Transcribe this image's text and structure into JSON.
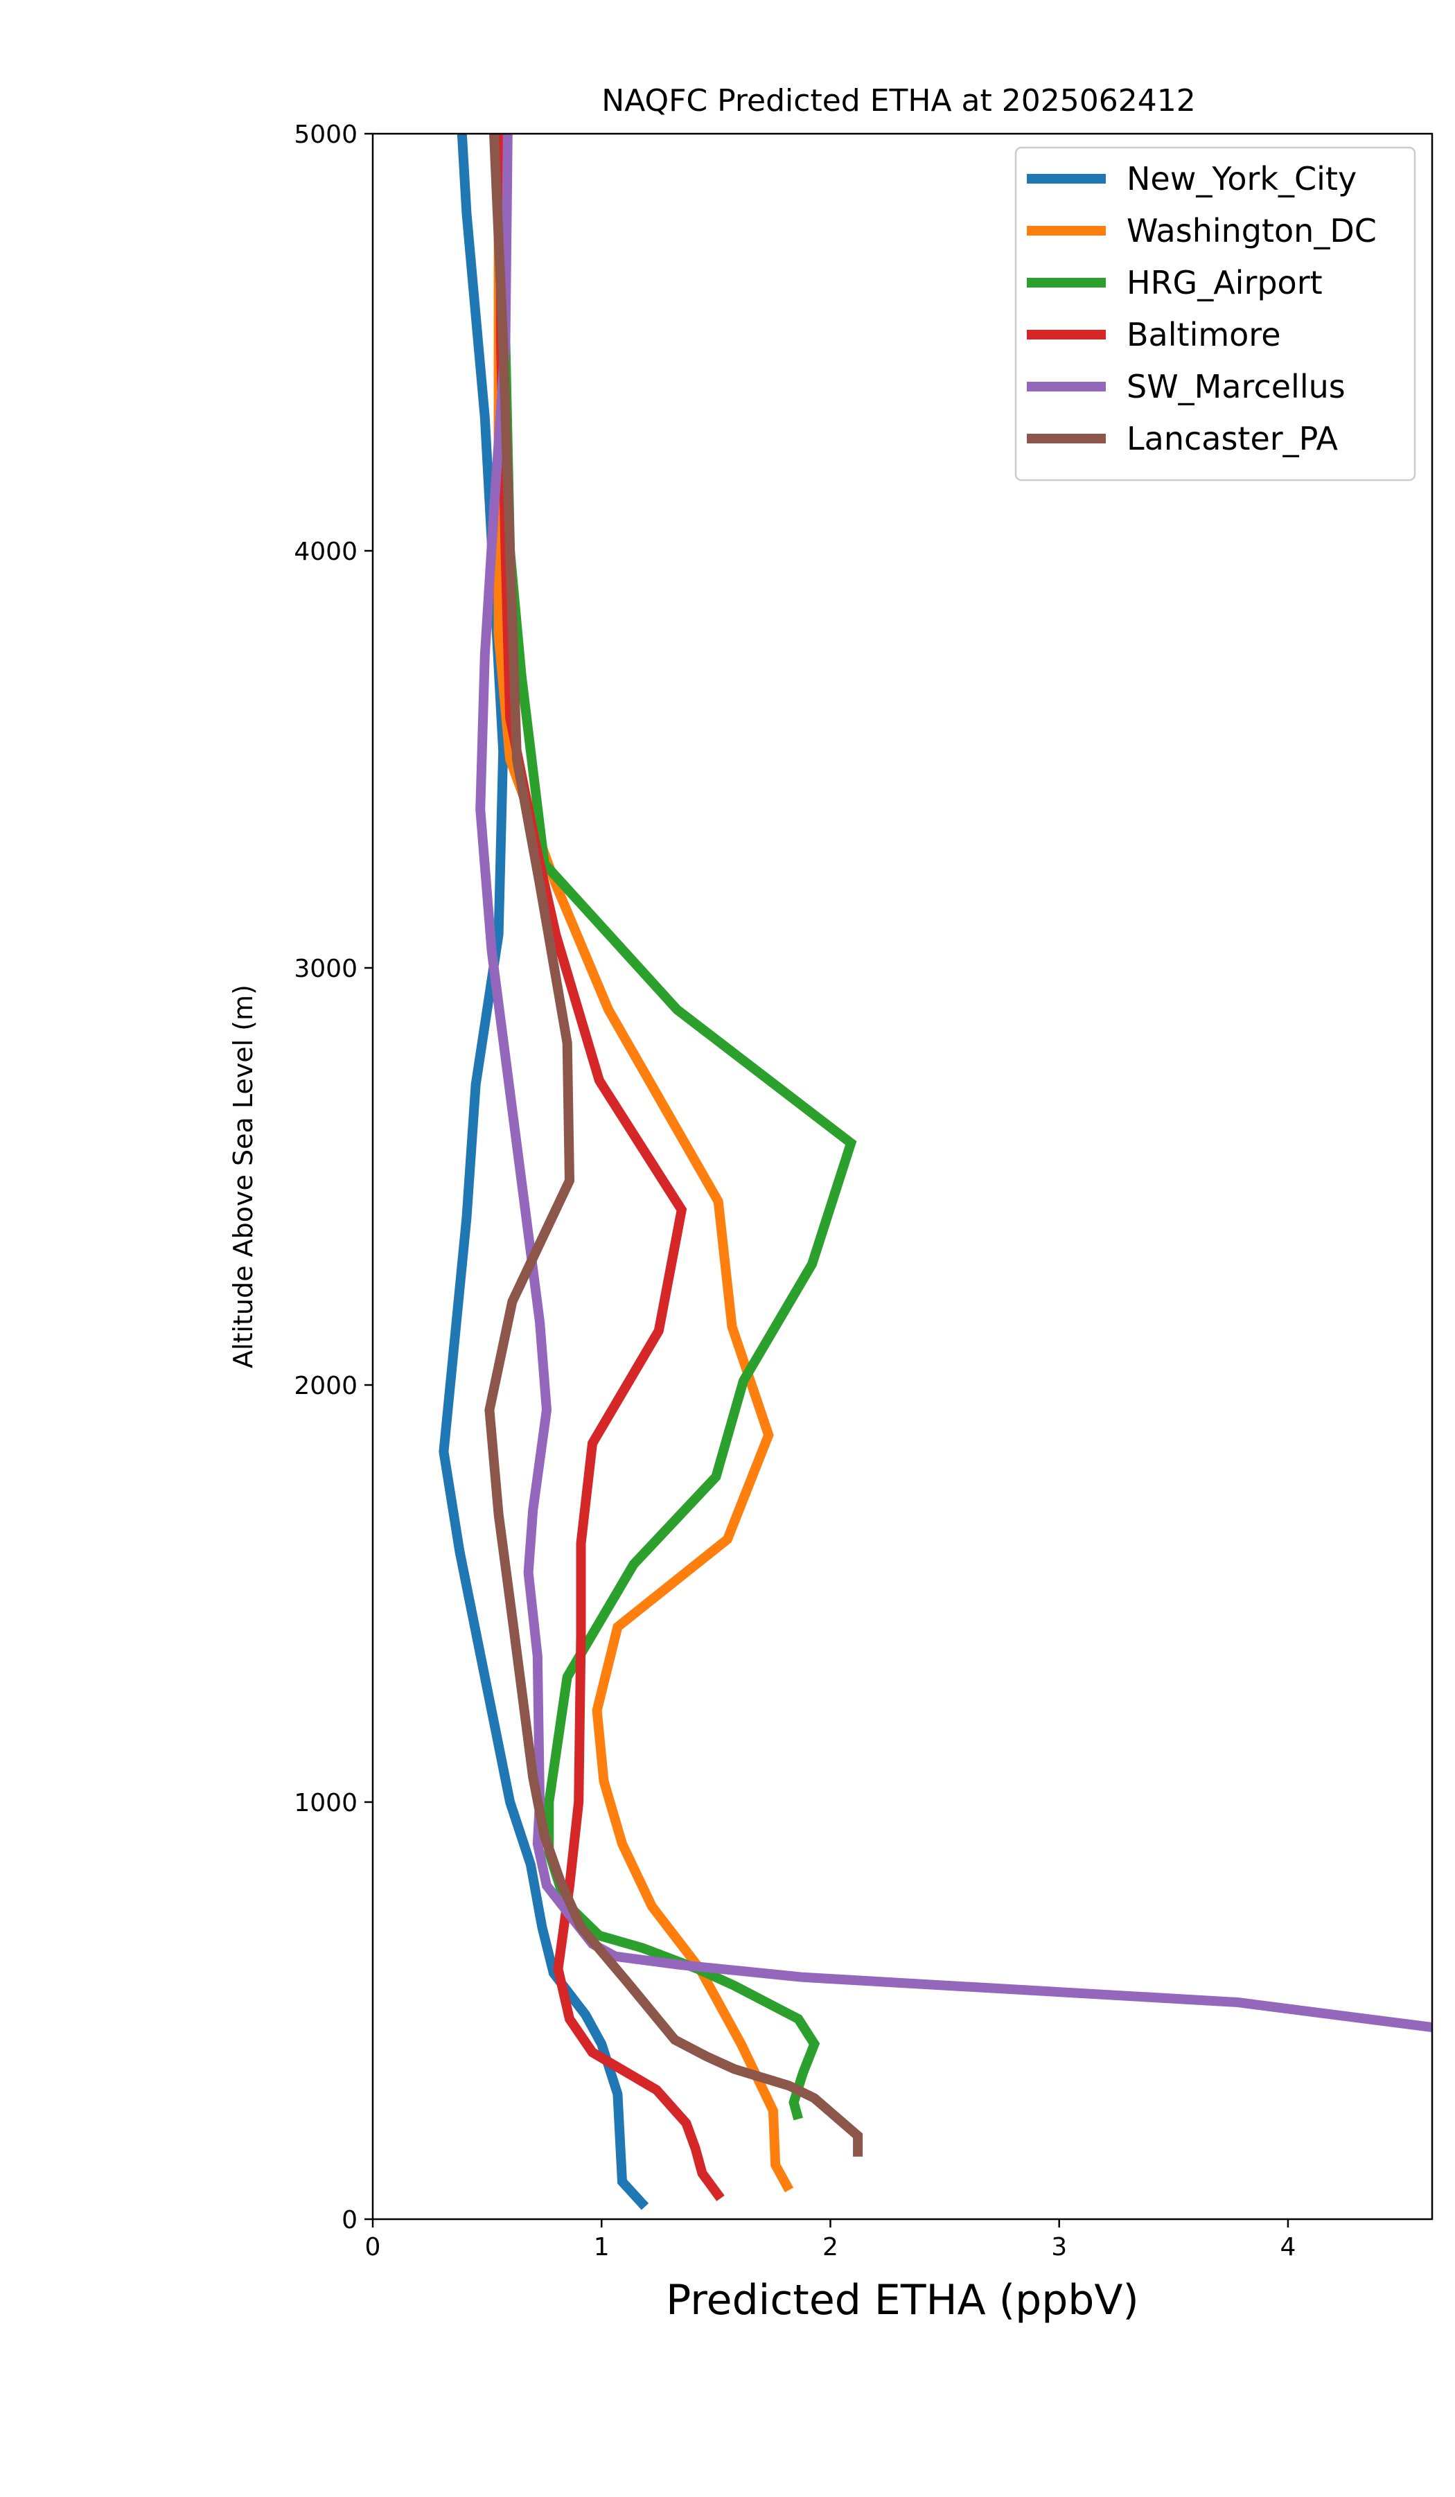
{
  "chart_data": {
    "type": "line",
    "title": "NAQFC Predicted ETHA at 2025062412",
    "xlabel": "Predicted ETHA (ppbV)",
    "ylabel": "Altitude Above Sea Level (m)",
    "xlim": [
      0,
      4.63
    ],
    "ylim": [
      0,
      5000
    ],
    "xticks": [
      0,
      1,
      2,
      3,
      4
    ],
    "xtick_labels": [
      "0",
      "1",
      "2",
      "3",
      "4"
    ],
    "yticks": [
      0,
      1000,
      2000,
      3000,
      4000,
      5000
    ],
    "ytick_labels": [
      "0",
      "1000",
      "2000",
      "3000",
      "4000",
      "5000"
    ],
    "grid": false,
    "legend_position": "top-right",
    "series": [
      {
        "name": "New_York_City",
        "color": "#1f77b4",
        "points": [
          [
            1.19,
            30
          ],
          [
            1.09,
            90
          ],
          [
            1.07,
            300
          ],
          [
            1.0,
            420
          ],
          [
            0.93,
            490
          ],
          [
            0.79,
            590
          ],
          [
            0.74,
            700
          ],
          [
            0.69,
            850
          ],
          [
            0.6,
            1000
          ],
          [
            0.38,
            1600
          ],
          [
            0.31,
            1840
          ],
          [
            0.41,
            2400
          ],
          [
            0.45,
            2720
          ],
          [
            0.55,
            3080
          ],
          [
            0.57,
            3520
          ],
          [
            0.49,
            4320
          ],
          [
            0.41,
            4810
          ],
          [
            0.39,
            5000
          ]
        ]
      },
      {
        "name": "Washington_DC",
        "color": "#ff7f0e",
        "points": [
          [
            1.82,
            70
          ],
          [
            1.76,
            130
          ],
          [
            1.75,
            260
          ],
          [
            1.61,
            420
          ],
          [
            1.43,
            600
          ],
          [
            1.22,
            750
          ],
          [
            1.09,
            900
          ],
          [
            1.01,
            1050
          ],
          [
            0.98,
            1220
          ],
          [
            1.07,
            1420
          ],
          [
            1.55,
            1630
          ],
          [
            1.73,
            1880
          ],
          [
            1.57,
            2140
          ],
          [
            1.51,
            2440
          ],
          [
            1.03,
            2900
          ],
          [
            0.8,
            3200
          ],
          [
            0.6,
            3500
          ],
          [
            0.55,
            3800
          ],
          [
            0.55,
            4400
          ],
          [
            0.55,
            5000
          ]
        ]
      },
      {
        "name": "HRG_Airport",
        "color": "#2ca02c",
        "points": [
          [
            1.86,
            240
          ],
          [
            1.84,
            280
          ],
          [
            1.88,
            350
          ],
          [
            1.93,
            420
          ],
          [
            1.86,
            480
          ],
          [
            1.58,
            560
          ],
          [
            1.42,
            600
          ],
          [
            1.18,
            650
          ],
          [
            0.99,
            680
          ],
          [
            0.84,
            760
          ],
          [
            0.77,
            880
          ],
          [
            0.77,
            1000
          ],
          [
            0.85,
            1300
          ],
          [
            1.14,
            1570
          ],
          [
            1.5,
            1780
          ],
          [
            1.62,
            2010
          ],
          [
            1.92,
            2290
          ],
          [
            2.09,
            2580
          ],
          [
            1.33,
            2900
          ],
          [
            0.75,
            3250
          ],
          [
            0.65,
            3700
          ],
          [
            0.6,
            4000
          ],
          [
            0.58,
            4500
          ],
          [
            0.57,
            5000
          ]
        ]
      },
      {
        "name": "Baltimore",
        "color": "#d62728",
        "points": [
          [
            1.52,
            50
          ],
          [
            1.44,
            110
          ],
          [
            1.41,
            170
          ],
          [
            1.37,
            230
          ],
          [
            1.24,
            310
          ],
          [
            0.96,
            400
          ],
          [
            0.86,
            480
          ],
          [
            0.81,
            600
          ],
          [
            0.86,
            800
          ],
          [
            0.9,
            1000
          ],
          [
            0.91,
            1400
          ],
          [
            0.91,
            1620
          ],
          [
            0.96,
            1860
          ],
          [
            1.25,
            2130
          ],
          [
            1.35,
            2420
          ],
          [
            0.99,
            2730
          ],
          [
            0.8,
            3080
          ],
          [
            0.71,
            3300
          ],
          [
            0.6,
            3600
          ],
          [
            0.58,
            4000
          ],
          [
            0.56,
            4500
          ],
          [
            0.56,
            5000
          ]
        ]
      },
      {
        "name": "SW_Marcellus",
        "color": "#9467bd",
        "points": [
          [
            4.63,
            460
          ],
          [
            3.78,
            520
          ],
          [
            1.88,
            580
          ],
          [
            1.34,
            610
          ],
          [
            1.06,
            630
          ],
          [
            0.96,
            660
          ],
          [
            0.76,
            800
          ],
          [
            0.72,
            900
          ],
          [
            0.73,
            1000
          ],
          [
            0.72,
            1350
          ],
          [
            0.68,
            1550
          ],
          [
            0.7,
            1700
          ],
          [
            0.76,
            1940
          ],
          [
            0.73,
            2150
          ],
          [
            0.52,
            3040
          ],
          [
            0.47,
            3380
          ],
          [
            0.49,
            3750
          ],
          [
            0.53,
            4100
          ],
          [
            0.58,
            4500
          ],
          [
            0.59,
            5000
          ]
        ]
      },
      {
        "name": "Lancaster_PA",
        "color": "#8c564b",
        "points": [
          [
            2.12,
            150
          ],
          [
            2.12,
            200
          ],
          [
            1.93,
            290
          ],
          [
            1.82,
            320
          ],
          [
            1.58,
            360
          ],
          [
            1.46,
            390
          ],
          [
            1.32,
            430
          ],
          [
            1.11,
            570
          ],
          [
            0.91,
            700
          ],
          [
            0.82,
            810
          ],
          [
            0.75,
            920
          ],
          [
            0.7,
            1060
          ],
          [
            0.62,
            1400
          ],
          [
            0.55,
            1690
          ],
          [
            0.51,
            1940
          ],
          [
            0.61,
            2200
          ],
          [
            0.86,
            2490
          ],
          [
            0.85,
            2820
          ],
          [
            0.73,
            3200
          ],
          [
            0.63,
            3500
          ],
          [
            0.6,
            4000
          ],
          [
            0.57,
            4500
          ],
          [
            0.53,
            5000
          ]
        ]
      }
    ]
  }
}
